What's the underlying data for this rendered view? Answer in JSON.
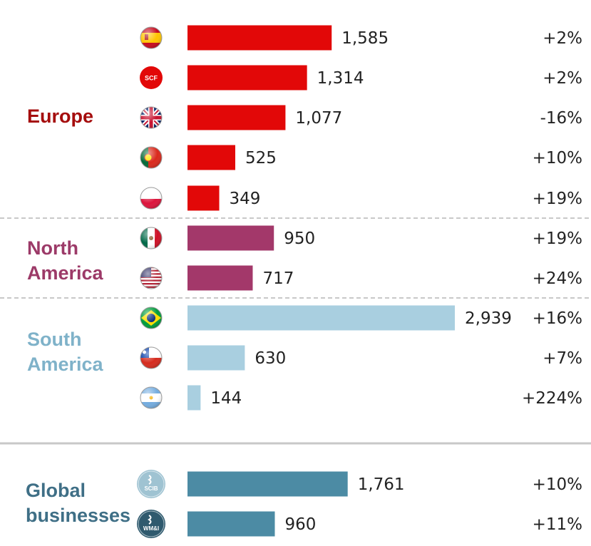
{
  "chart_data": {
    "type": "bar",
    "orientation": "horizontal",
    "xlim": [
      0,
      2939
    ],
    "groups": [
      {
        "name": "Europe",
        "label_lines": [
          "Europe"
        ],
        "color": "#a50d0d",
        "bar_color": "#e20808",
        "items": [
          {
            "icon": "spain-flag-icon",
            "value": 1585,
            "value_text": "1,585",
            "change": "+2%"
          },
          {
            "icon": "scf-logo-icon",
            "logo_text": "SCF",
            "value": 1314,
            "value_text": "1,314",
            "change": "+2%"
          },
          {
            "icon": "uk-flag-icon",
            "value": 1077,
            "value_text": "1,077",
            "change": "-16%"
          },
          {
            "icon": "portugal-flag-icon",
            "value": 525,
            "value_text": "525",
            "change": "+10%"
          },
          {
            "icon": "poland-flag-icon",
            "value": 349,
            "value_text": "349",
            "change": "+19%"
          }
        ]
      },
      {
        "name": "North America",
        "label_lines": [
          "North",
          "America"
        ],
        "color": "#9c3a68",
        "bar_color": "#a3386a",
        "items": [
          {
            "icon": "mexico-flag-icon",
            "value": 950,
            "value_text": "950",
            "change": "+19%"
          },
          {
            "icon": "usa-flag-icon",
            "value": 717,
            "value_text": "717",
            "change": "+24%"
          }
        ]
      },
      {
        "name": "South America",
        "label_lines": [
          "South",
          "America"
        ],
        "color": "#7fb2c9",
        "bar_color": "#a9cfe0",
        "items": [
          {
            "icon": "brazil-flag-icon",
            "value": 2939,
            "value_text": "2,939",
            "change": "+16%"
          },
          {
            "icon": "chile-flag-icon",
            "value": 630,
            "value_text": "630",
            "change": "+7%"
          },
          {
            "icon": "argentina-flag-icon",
            "value": 144,
            "value_text": "144",
            "change": "+224%"
          }
        ]
      },
      {
        "name": "Global businesses",
        "label_lines": [
          "Global",
          "businesses"
        ],
        "color": "#3f6f86",
        "bar_color": "#4c8ba4",
        "items": [
          {
            "icon": "scib-logo-icon",
            "logo_text": "SCIB",
            "value": 1761,
            "value_text": "1,761",
            "change": "+10%"
          },
          {
            "icon": "wmi-logo-icon",
            "logo_text": "WM&I",
            "value": 960,
            "value_text": "960",
            "change": "+11%"
          }
        ]
      }
    ]
  }
}
